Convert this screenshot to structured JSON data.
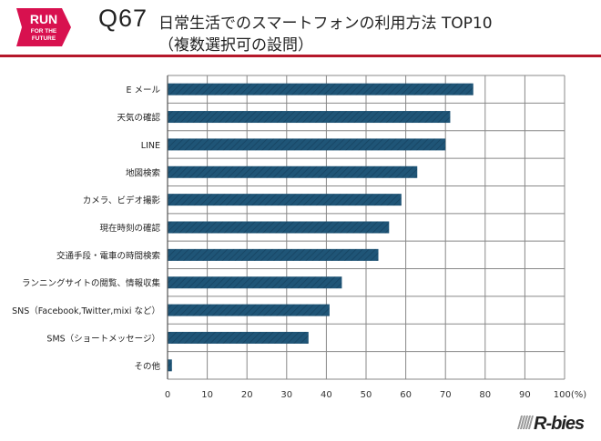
{
  "header": {
    "logo_text": [
      "RUN",
      "FOR THE",
      "FUTURE"
    ],
    "question": "Q67",
    "title_line1": "日常生活でのスマートフォンの利用方法 TOP10",
    "title_line2": "（複数選択可の設問）"
  },
  "brand": "R-bies",
  "colors": {
    "bar": "#1f5577",
    "accent": "#b5182a",
    "grid": "#888888"
  },
  "chart_data": {
    "type": "bar",
    "orientation": "horizontal",
    "categories": [
      "E メール",
      "天気の確認",
      "LINE",
      "地図検索",
      "カメラ、ビデオ撮影",
      "現在時刻の確認",
      "交通手段・電車の時間検索",
      "ランニングサイトの閲覧、情報収集",
      "SNS（Facebook,Twitter,mixi など）",
      "SMS（ショートメッセージ）",
      "その他"
    ],
    "values": [
      77.0,
      71.2,
      70.0,
      62.9,
      58.9,
      55.8,
      53.1,
      43.9,
      40.8,
      35.5,
      1.1
    ],
    "xlim": [
      0,
      100
    ],
    "xticks": [
      "0",
      "10",
      "20",
      "30",
      "40",
      "50",
      "60",
      "70",
      "80",
      "90",
      "100(%)"
    ],
    "grid": true
  }
}
